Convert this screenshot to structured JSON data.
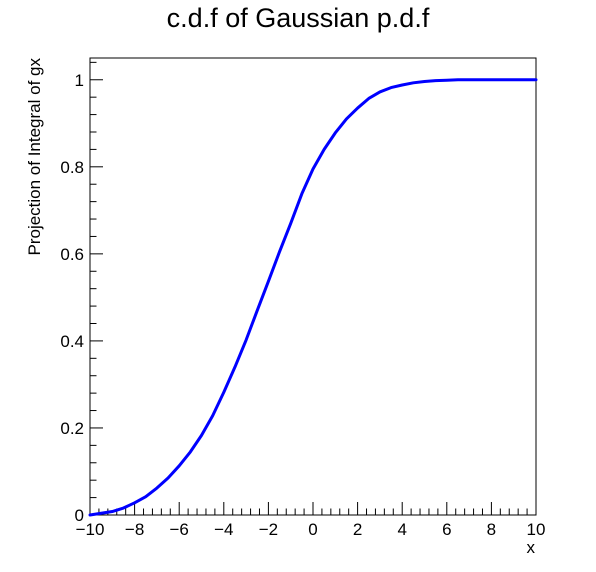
{
  "chart_data": {
    "type": "line",
    "title": "c.d.f of Gaussian p.d.f",
    "xlabel": "x",
    "ylabel": "Projection of Integral of gx",
    "xlim": [
      -10,
      10
    ],
    "ylim": [
      0,
      1.05
    ],
    "x_ticks": [
      -10,
      -8,
      -6,
      -4,
      -2,
      0,
      2,
      4,
      6,
      8,
      10
    ],
    "x_tick_labels": [
      "−10",
      "−8",
      "−6",
      "−4",
      "−2",
      "0",
      "2",
      "4",
      "6",
      "8",
      "10"
    ],
    "y_ticks": [
      0,
      0.2,
      0.4,
      0.6,
      0.8,
      1
    ],
    "y_tick_labels": [
      "0",
      "0.2",
      "0.4",
      "0.6",
      "0.8",
      "1"
    ],
    "grid": false,
    "series": [
      {
        "color": "#0000ff",
        "x": [
          -10,
          -9.5,
          -9,
          -8.5,
          -8,
          -7.5,
          -7,
          -6.5,
          -6,
          -5.5,
          -5,
          -4.5,
          -4,
          -3.5,
          -3,
          -2.5,
          -2,
          -1.5,
          -1,
          -0.5,
          0,
          0.5,
          1,
          1.5,
          2,
          2.5,
          3,
          3.5,
          4,
          4.5,
          5,
          5.5,
          6,
          6.5,
          7,
          7.5,
          8,
          8.5,
          9,
          9.5,
          10
        ],
        "y": [
          0.0,
          0.004,
          0.008,
          0.016,
          0.028,
          0.042,
          0.062,
          0.085,
          0.113,
          0.145,
          0.183,
          0.228,
          0.282,
          0.34,
          0.402,
          0.47,
          0.537,
          0.605,
          0.67,
          0.738,
          0.795,
          0.84,
          0.878,
          0.91,
          0.935,
          0.957,
          0.972,
          0.982,
          0.988,
          0.993,
          0.996,
          0.998,
          0.999,
          1.0,
          1.0,
          1.0,
          1.0,
          1.0,
          1.0,
          1.0,
          1.0
        ]
      }
    ]
  }
}
